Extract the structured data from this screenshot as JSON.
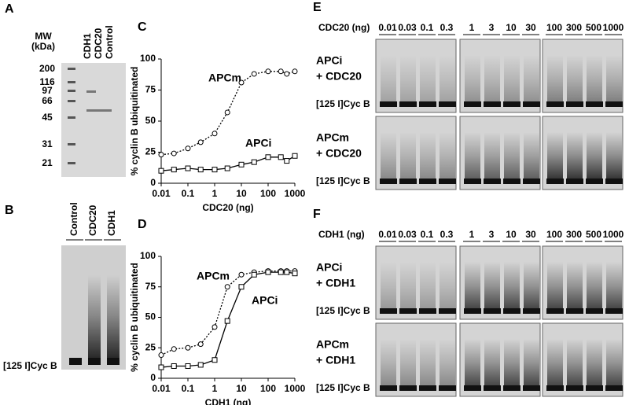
{
  "panels": {
    "A": {
      "label": "A",
      "mw_title": [
        "MW",
        "(kDa)"
      ],
      "mw": [
        "200",
        "116",
        "97",
        "66",
        "45",
        "31",
        "21"
      ],
      "lanes": [
        "CDH1",
        "CDC20",
        "Control"
      ]
    },
    "B": {
      "label": "B",
      "lanes": [
        "Control",
        "CDC20",
        "CDH1"
      ],
      "band": "[125 I]Cyc B"
    },
    "E": {
      "label": "E",
      "axis": "CDC20 (ng)",
      "doses": [
        "0.01",
        "0.03",
        "0.1",
        "0.3",
        "1",
        "3",
        "10",
        "30",
        "100",
        "300",
        "500",
        "1000"
      ],
      "rows": [
        {
          "line1": "APCi",
          "line2": "+ CDC20"
        },
        {
          "line1": "APCm",
          "line2": "+ CDC20"
        }
      ],
      "band": "[125 I]Cyc B"
    },
    "F": {
      "label": "F",
      "axis": "CDH1 (ng)",
      "doses": [
        "0.01",
        "0.03",
        "0.1",
        "0.3",
        "1",
        "3",
        "10",
        "30",
        "100",
        "300",
        "500",
        "1000"
      ],
      "rows": [
        {
          "line1": "APCi",
          "line2": "+ CDH1"
        },
        {
          "line1": "APCm",
          "line2": "+ CDH1"
        }
      ],
      "band": "[125 I]Cyc B"
    }
  },
  "chart_data": [
    {
      "type": "line",
      "panel": "C",
      "xlabel": "CDC20 (ng)",
      "ylabel": "% cyclin B ubiquitinated",
      "xscale": "log",
      "xlim": [
        0.01,
        1000
      ],
      "xticks": [
        0.01,
        0.1,
        1,
        10,
        100,
        1000
      ],
      "ylim": [
        0,
        100
      ],
      "yticks": [
        0,
        25,
        50,
        75,
        100
      ],
      "x": [
        0.01,
        0.03,
        0.1,
        0.3,
        1,
        3,
        10,
        30,
        100,
        300,
        500,
        1000
      ],
      "series": [
        {
          "name": "APCm",
          "color": "#000000",
          "style": "dotted",
          "marker": "circle",
          "values": [
            23,
            24,
            28,
            33,
            40,
            57,
            81,
            88,
            90,
            90,
            88,
            90
          ]
        },
        {
          "name": "APCi",
          "color": "#000000",
          "style": "solid",
          "marker": "square",
          "values": [
            10,
            11,
            12,
            11,
            11,
            12,
            15,
            17,
            21,
            21,
            18,
            22
          ]
        }
      ]
    },
    {
      "type": "line",
      "panel": "D",
      "xlabel": "CDH1 (ng)",
      "ylabel": "% cyclin B ubiquitinated",
      "xscale": "log",
      "xlim": [
        0.01,
        1000
      ],
      "xticks": [
        0.01,
        0.1,
        1,
        10,
        100,
        1000
      ],
      "ylim": [
        0,
        100
      ],
      "yticks": [
        0,
        25,
        50,
        75,
        100
      ],
      "x": [
        0.01,
        0.03,
        0.1,
        0.3,
        1,
        3,
        10,
        30,
        100,
        300,
        500,
        1000
      ],
      "series": [
        {
          "name": "APCm",
          "color": "#000000",
          "style": "dotted",
          "marker": "circle",
          "values": [
            19,
            24,
            25,
            28,
            42,
            75,
            85,
            87,
            88,
            88,
            88,
            88
          ]
        },
        {
          "name": "APCi",
          "color": "#000000",
          "style": "solid",
          "marker": "square",
          "values": [
            9,
            10,
            10,
            11,
            15,
            47,
            75,
            85,
            87,
            87,
            87,
            86
          ]
        }
      ]
    }
  ]
}
